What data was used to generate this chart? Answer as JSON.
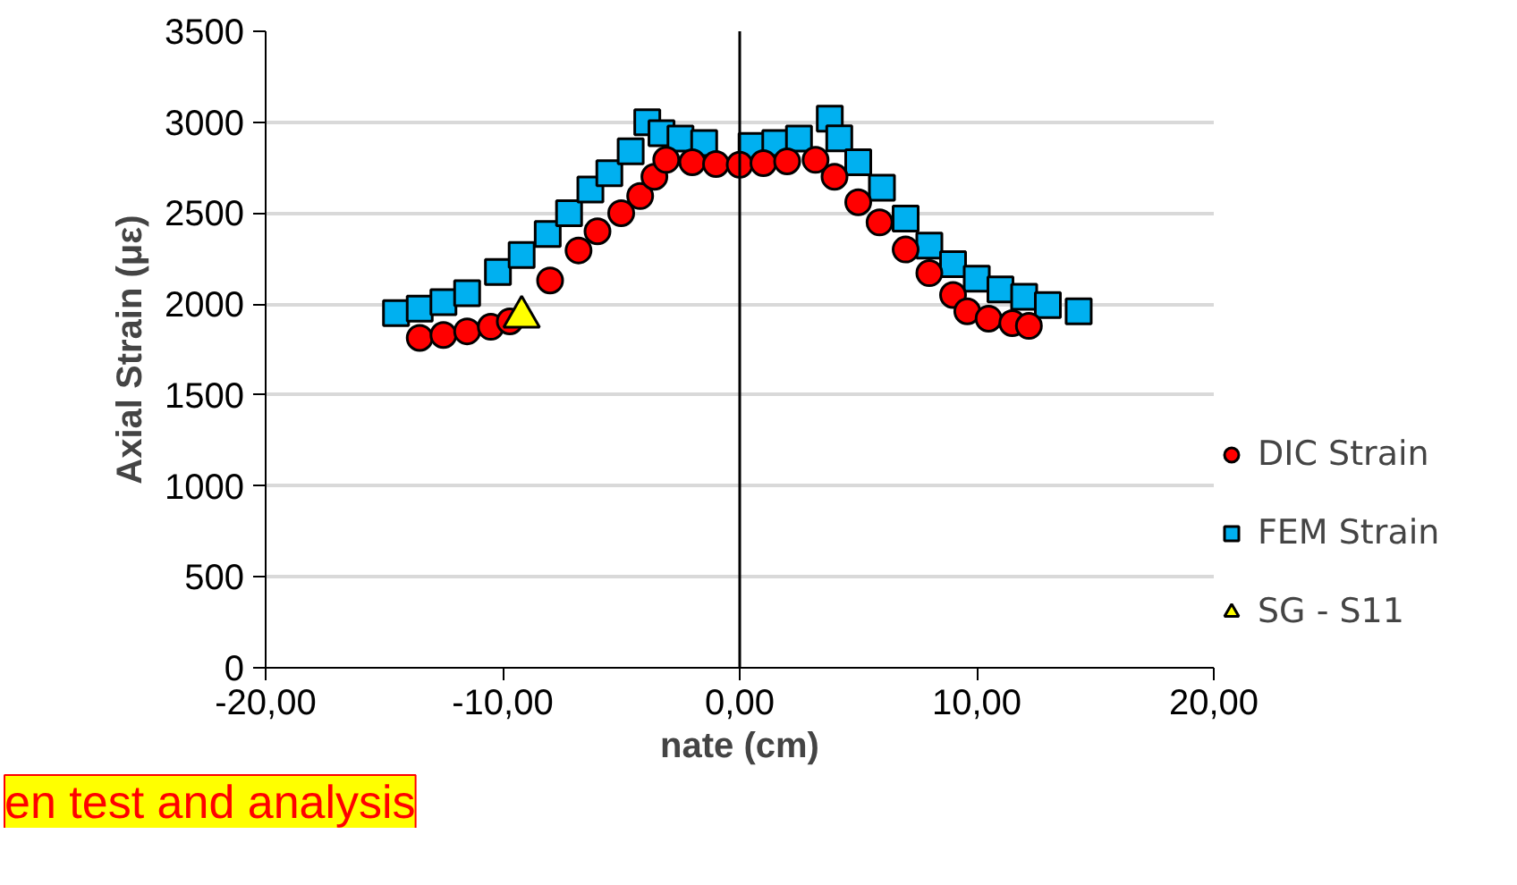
{
  "chart_data": {
    "type": "scatter",
    "ylabel": "Axial Strain (με)",
    "xlabel": "nate (cm)",
    "annotations": [
      "en test and analysis"
    ],
    "xlim": [
      -20,
      20
    ],
    "xticks": [
      {
        "value": -20,
        "label": "-20,00"
      },
      {
        "value": -10,
        "label": "-10,00"
      },
      {
        "value": 0,
        "label": "0,00"
      },
      {
        "value": 10,
        "label": "10,00"
      },
      {
        "value": 20,
        "label": "20,00"
      }
    ],
    "ylim": [
      0,
      3500
    ],
    "yticks": [
      0,
      500,
      1000,
      1500,
      2000,
      2500,
      3000,
      3500
    ],
    "grid": "y",
    "legend": "right",
    "ref_lines": [
      {
        "axis": "x",
        "value": 0,
        "color": "#000000"
      }
    ],
    "series": [
      {
        "name": "DIC Strain",
        "color": "#ff0000",
        "marker": "circle",
        "x": [
          -13.5,
          -12.5,
          -11.5,
          -10.5,
          -9.7,
          -8,
          -6.8,
          -6,
          -5,
          -4.2,
          -3.6,
          -3.1,
          -2,
          -1,
          0,
          1,
          2,
          3.2,
          4,
          5,
          5.9,
          7,
          8,
          9,
          9.6,
          10.5,
          11.5,
          12.2
        ],
        "values": [
          1814,
          1830,
          1850,
          1875,
          1905,
          2130,
          2295,
          2400,
          2500,
          2594,
          2700,
          2793,
          2780,
          2770,
          2766,
          2775,
          2785,
          2793,
          2700,
          2560,
          2449,
          2300,
          2170,
          2050,
          1960,
          1920,
          1895,
          1880
        ]
      },
      {
        "name": "FEM Strain",
        "color": "#00b0f0",
        "marker": "square",
        "x": [
          -14.5,
          -13.5,
          -12.5,
          -11.5,
          -10.2,
          -9.2,
          -8.1,
          -7.2,
          -6.3,
          -5.5,
          -4.6,
          -3.9,
          -3.3,
          -2.5,
          -1.5,
          0.5,
          1.5,
          2.5,
          3.8,
          4.2,
          5,
          6,
          7,
          8,
          9,
          10,
          11,
          12,
          13,
          14.3
        ],
        "values": [
          1950,
          1975,
          2010,
          2060,
          2177,
          2270,
          2385,
          2500,
          2630,
          2720,
          2840,
          3000,
          2940,
          2910,
          2885,
          2870,
          2885,
          2910,
          3020,
          2911,
          2780,
          2640,
          2470,
          2322,
          2220,
          2140,
          2080,
          2040,
          1995,
          1960
        ]
      },
      {
        "name": "SG - S11",
        "color": "#ffff00",
        "marker": "triangle",
        "x": [
          -9.2
        ],
        "values": [
          1930
        ]
      }
    ]
  }
}
